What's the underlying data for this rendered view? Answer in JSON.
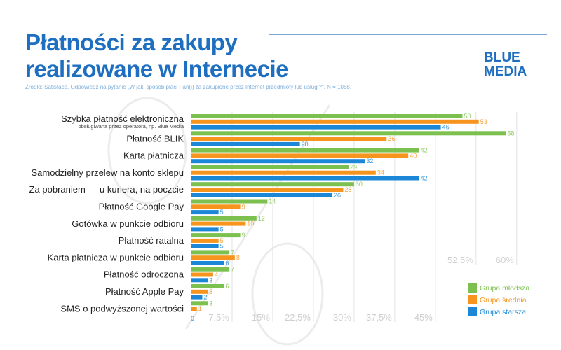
{
  "header": {
    "title_line1": "Płatności za zakupy",
    "title_line2": "realizowane w Internecie",
    "logo_line1": "BLUE",
    "logo_line2": "MEDIA",
    "source": "Źródło: Satisface. Odpowiedź na pytanie „W jaki sposób płaci Pan(i) za zakupione przez Internet przedmioty lub usługi?\". N = 1088."
  },
  "colors": {
    "title": "#1f6fc0",
    "young": "#7cc04f",
    "middle": "#f7941d",
    "older": "#1b87d6"
  },
  "chart_data": {
    "type": "bar",
    "orientation": "horizontal",
    "title": "Płatności za zakupy realizowane w Internecie",
    "xlabel": "",
    "ylabel": "",
    "xlim": [
      0,
      60
    ],
    "grid": true,
    "legend_position": "bottom-right",
    "x_ticks": [
      "0",
      "7,5%",
      "15%",
      "22,5%",
      "30%",
      "37,5%",
      "45%",
      "52,5%",
      "60%"
    ],
    "x_tick_values": [
      0,
      7.5,
      15,
      22.5,
      30,
      37.5,
      45,
      52.5,
      60
    ],
    "categories": [
      "Szybka płatność elektroniczna",
      "Płatność BLIK",
      "Karta płatnicza",
      "Samodzielny przelew na konto sklepu",
      "Za pobraniem — u kuriera, na poczcie",
      "Płatność Google Pay",
      "Gotówka w punkcie odbioru",
      "Płatność ratalna",
      "Karta płatnicza w punkcie odbioru",
      "Płatność odroczona",
      "Płatność Apple Pay",
      "SMS o podwyższonej wartości"
    ],
    "category_sublabels": [
      "obsługiwana przez operatora, np. Blue Media",
      "",
      "",
      "",
      "",
      "",
      "",
      "",
      "",
      "",
      "",
      ""
    ],
    "series": [
      {
        "name": "Grupa młodsza",
        "color": "#7cc04f",
        "values": [
          50,
          58,
          42,
          29,
          30,
          14,
          12,
          9,
          7,
          7,
          6,
          3
        ]
      },
      {
        "name": "Grupa średnia",
        "color": "#f7941d",
        "values": [
          53,
          36,
          40,
          34,
          28,
          9,
          10,
          5,
          8,
          4,
          3,
          1
        ]
      },
      {
        "name": "Grupa starsza",
        "color": "#1b87d6",
        "values": [
          46,
          20,
          32,
          42,
          26,
          5,
          5,
          5,
          6,
          3,
          2,
          0
        ]
      }
    ]
  }
}
